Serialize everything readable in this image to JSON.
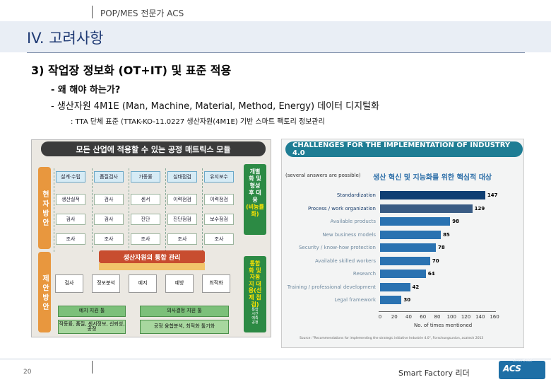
{
  "header": {
    "top_label": "POP/MES 전문가 ACS"
  },
  "page": {
    "title": "IV. 고려사항",
    "subtitle": "3) 작업장 정보화 (OT+IT) 및 표준 적용",
    "question": "- 왜 해야 하는가?",
    "line2": "- 생산자원 4M1E (Man, Machine, Material, Method, Energy) 데이터 디지털화",
    "line3": ": TTA 단체 표준 (TTAK-KO-11.0227 생산자원(4M1E) 기반 스마트 팩토리 정보관리"
  },
  "left_panel": {
    "header": "모든 산업에 적용할 수 있는 공정 매트릭스 모듈",
    "side_top": "현 자 방 안",
    "side_bot": "제 안 방 안",
    "columns": [
      {
        "head": "설계·수립",
        "cells": [
          "생산실적",
          "검사",
          "조사"
        ]
      },
      {
        "head": "품질검사",
        "cells": [
          "검사",
          "검사",
          "조사"
        ]
      },
      {
        "head": "가동률",
        "cells": [
          "센서",
          "진단",
          "조사"
        ]
      },
      {
        "head": "실태점검",
        "cells": [
          "이력점검",
          "진단점검",
          "조사"
        ]
      },
      {
        "head": "유지보수",
        "cells": [
          "이력점검",
          "보수점검",
          "조사"
        ]
      }
    ],
    "right_note_top": [
      "개별",
      "화 및",
      "형성",
      "후 대",
      "응"
    ],
    "right_note_top_highlight": "(비능률화)",
    "mid_label": "생산자원의 통합 관리",
    "bottom_row": [
      "검사",
      "정보분석",
      "예지",
      "예방",
      "최적화"
    ],
    "green_row1": [
      "예지 지원 툴",
      "의사결정 지원 툴"
    ],
    "green_row2": [
      "작동률, 품질, 센서정보, 신뢰성, 공정",
      "공정 융합분석, 최적화 툴기화"
    ],
    "right_note_bot": [
      "통합",
      "화 및",
      "자동",
      "지 대",
      "응(선",
      "제 점",
      "검)"
    ],
    "right_note_bot_small": [
      "통합",
      "시간",
      "예측",
      "공정"
    ]
  },
  "right_panel": {
    "header": "CHALLENGES FOR THE IMPLEMENTATION OF INDUSTRY 4.0",
    "note": "(several answers are possible)",
    "note_ko": "생산 혁신 및 지능화를 위한 핵심적 대상",
    "axis_title": "No. of times mentioned",
    "source": "Source: \"Recommendations for implementing the strategic initiative Industrie 4.0\", Forschungsunion, acatech 2013"
  },
  "chart_data": {
    "type": "bar",
    "orientation": "horizontal",
    "title": "CHALLENGES FOR THE IMPLEMENTATION OF INDUSTRY 4.0",
    "xlabel": "No. of times mentioned",
    "categories": [
      "Standardization",
      "Process / work organization",
      "Available products",
      "New business models",
      "Security / know-how protection",
      "Available skilled workers",
      "Research",
      "Training / professional development",
      "Legal framework"
    ],
    "values": [
      147,
      129,
      98,
      85,
      78,
      70,
      64,
      42,
      30
    ],
    "xlim": [
      0,
      160
    ],
    "xticks": [
      0,
      20,
      40,
      60,
      80,
      100,
      120,
      140,
      160
    ],
    "colors": {
      "primary": "#0f3f73",
      "secondary": "#2a72b1"
    }
  },
  "footer": {
    "page_number": "20",
    "label": "Smart Factory 리더",
    "logo": "ACS",
    "logo_tag": "Since 2012"
  }
}
